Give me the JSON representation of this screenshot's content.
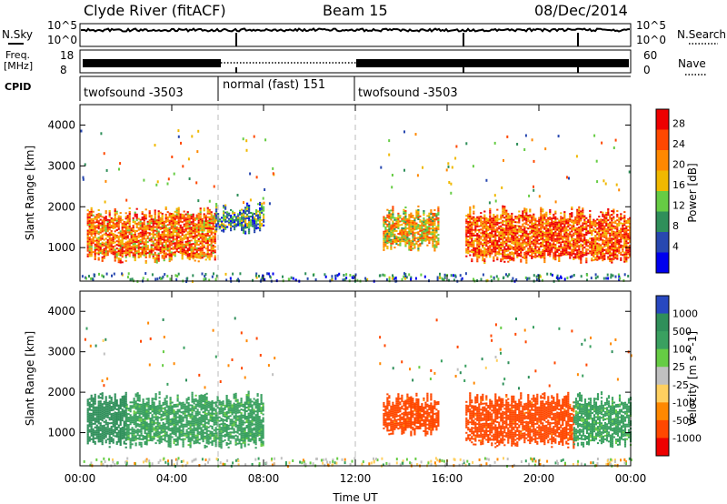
{
  "header": {
    "station": "Clyde River (fitACF)",
    "beam": "Beam 15",
    "date": "08/Dec/2014"
  },
  "top_panels": {
    "nsky_label": "N.Sky",
    "nsearch_label": "N.Search",
    "freq_label_1": "Freq.",
    "freq_label_2": "[MHz]",
    "nave_label": "Nave",
    "cpid_label": "CPID",
    "noise_left_ticks": [
      "10^5",
      "10^0"
    ],
    "noise_right_ticks": [
      "10^5",
      "10^0"
    ],
    "freq_left_ticks": [
      "18",
      "8"
    ],
    "freq_right_ticks": [
      "60",
      "0"
    ],
    "cpid_segments": [
      {
        "label": "twofsound -3503",
        "start_hour": 0.0,
        "end_hour": 6.0
      },
      {
        "label": "normal (fast) 151",
        "start_hour": 6.0,
        "end_hour": 12.0
      },
      {
        "label": "twofsound -3503",
        "start_hour": 12.0,
        "end_hour": 24.0
      }
    ]
  },
  "chart_data": [
    {
      "type": "heatmap",
      "title": "",
      "xlabel": "Time UT",
      "ylabel": "Slant Range [km]",
      "xlim": [
        0,
        24
      ],
      "ylim": [
        180,
        4500
      ],
      "x_ticks": [
        "00:00",
        "04:00",
        "08:00",
        "12:00",
        "16:00",
        "20:00",
        "00:00"
      ],
      "y_ticks": [
        "1000",
        "2000",
        "3000",
        "4000"
      ],
      "colorbar": {
        "label": "Power [dB]",
        "ticks": [
          "28",
          "24",
          "20",
          "16",
          "12",
          "8",
          "4"
        ],
        "range": [
          0,
          30
        ],
        "colors": [
          "#0000ee",
          "#2848b0",
          "#2f8f5a",
          "#66cc44",
          "#f0b800",
          "#ff8800",
          "#ff4800",
          "#ee0000"
        ]
      },
      "echo_regions": [
        {
          "start_hour": 0.3,
          "end_hour": 5.9,
          "range_min_km": 600,
          "range_max_km": 2000,
          "typical_db": 22
        },
        {
          "start_hour": 5.9,
          "end_hour": 8.0,
          "range_min_km": 1300,
          "range_max_km": 2100,
          "typical_db": 10
        },
        {
          "start_hour": 13.2,
          "end_hour": 15.6,
          "range_min_km": 900,
          "range_max_km": 2000,
          "typical_db": 18
        },
        {
          "start_hour": 16.8,
          "end_hour": 24.0,
          "range_min_km": 600,
          "range_max_km": 2000,
          "typical_db": 24
        }
      ]
    },
    {
      "type": "heatmap",
      "title": "",
      "xlabel": "Time UT",
      "ylabel": "Slant Range [km]",
      "xlim": [
        0,
        24
      ],
      "ylim": [
        180,
        4500
      ],
      "x_ticks": [
        "00:00",
        "04:00",
        "08:00",
        "12:00",
        "16:00",
        "20:00",
        "00:00"
      ],
      "y_ticks": [
        "1000",
        "2000",
        "3000",
        "4000"
      ],
      "colorbar": {
        "label": "Velocity [m s^-1]",
        "ticks": [
          "1000",
          "500",
          "100",
          "25",
          "-25",
          "-100",
          "-500",
          "-1000"
        ],
        "colors": [
          "#2848c0",
          "#2f8f5a",
          "#3aa060",
          "#66cc44",
          "#c0c0c0",
          "#ffd060",
          "#ff8800",
          "#ff4800",
          "#ee0000"
        ]
      },
      "echo_regions": [
        {
          "start_hour": 0.3,
          "end_hour": 2.0,
          "range_min_km": 600,
          "range_max_km": 2000,
          "typical_velocity": 500
        },
        {
          "start_hour": 2.0,
          "end_hour": 8.0,
          "range_min_km": 600,
          "range_max_km": 2000,
          "typical_velocity": 100
        },
        {
          "start_hour": 13.2,
          "end_hour": 15.6,
          "range_min_km": 900,
          "range_max_km": 2000,
          "typical_velocity": -500
        },
        {
          "start_hour": 16.8,
          "end_hour": 21.5,
          "range_min_km": 600,
          "range_max_km": 2000,
          "typical_velocity": -500
        },
        {
          "start_hour": 21.5,
          "end_hour": 24.0,
          "range_min_km": 600,
          "range_max_km": 2000,
          "typical_velocity": 100
        }
      ]
    }
  ]
}
